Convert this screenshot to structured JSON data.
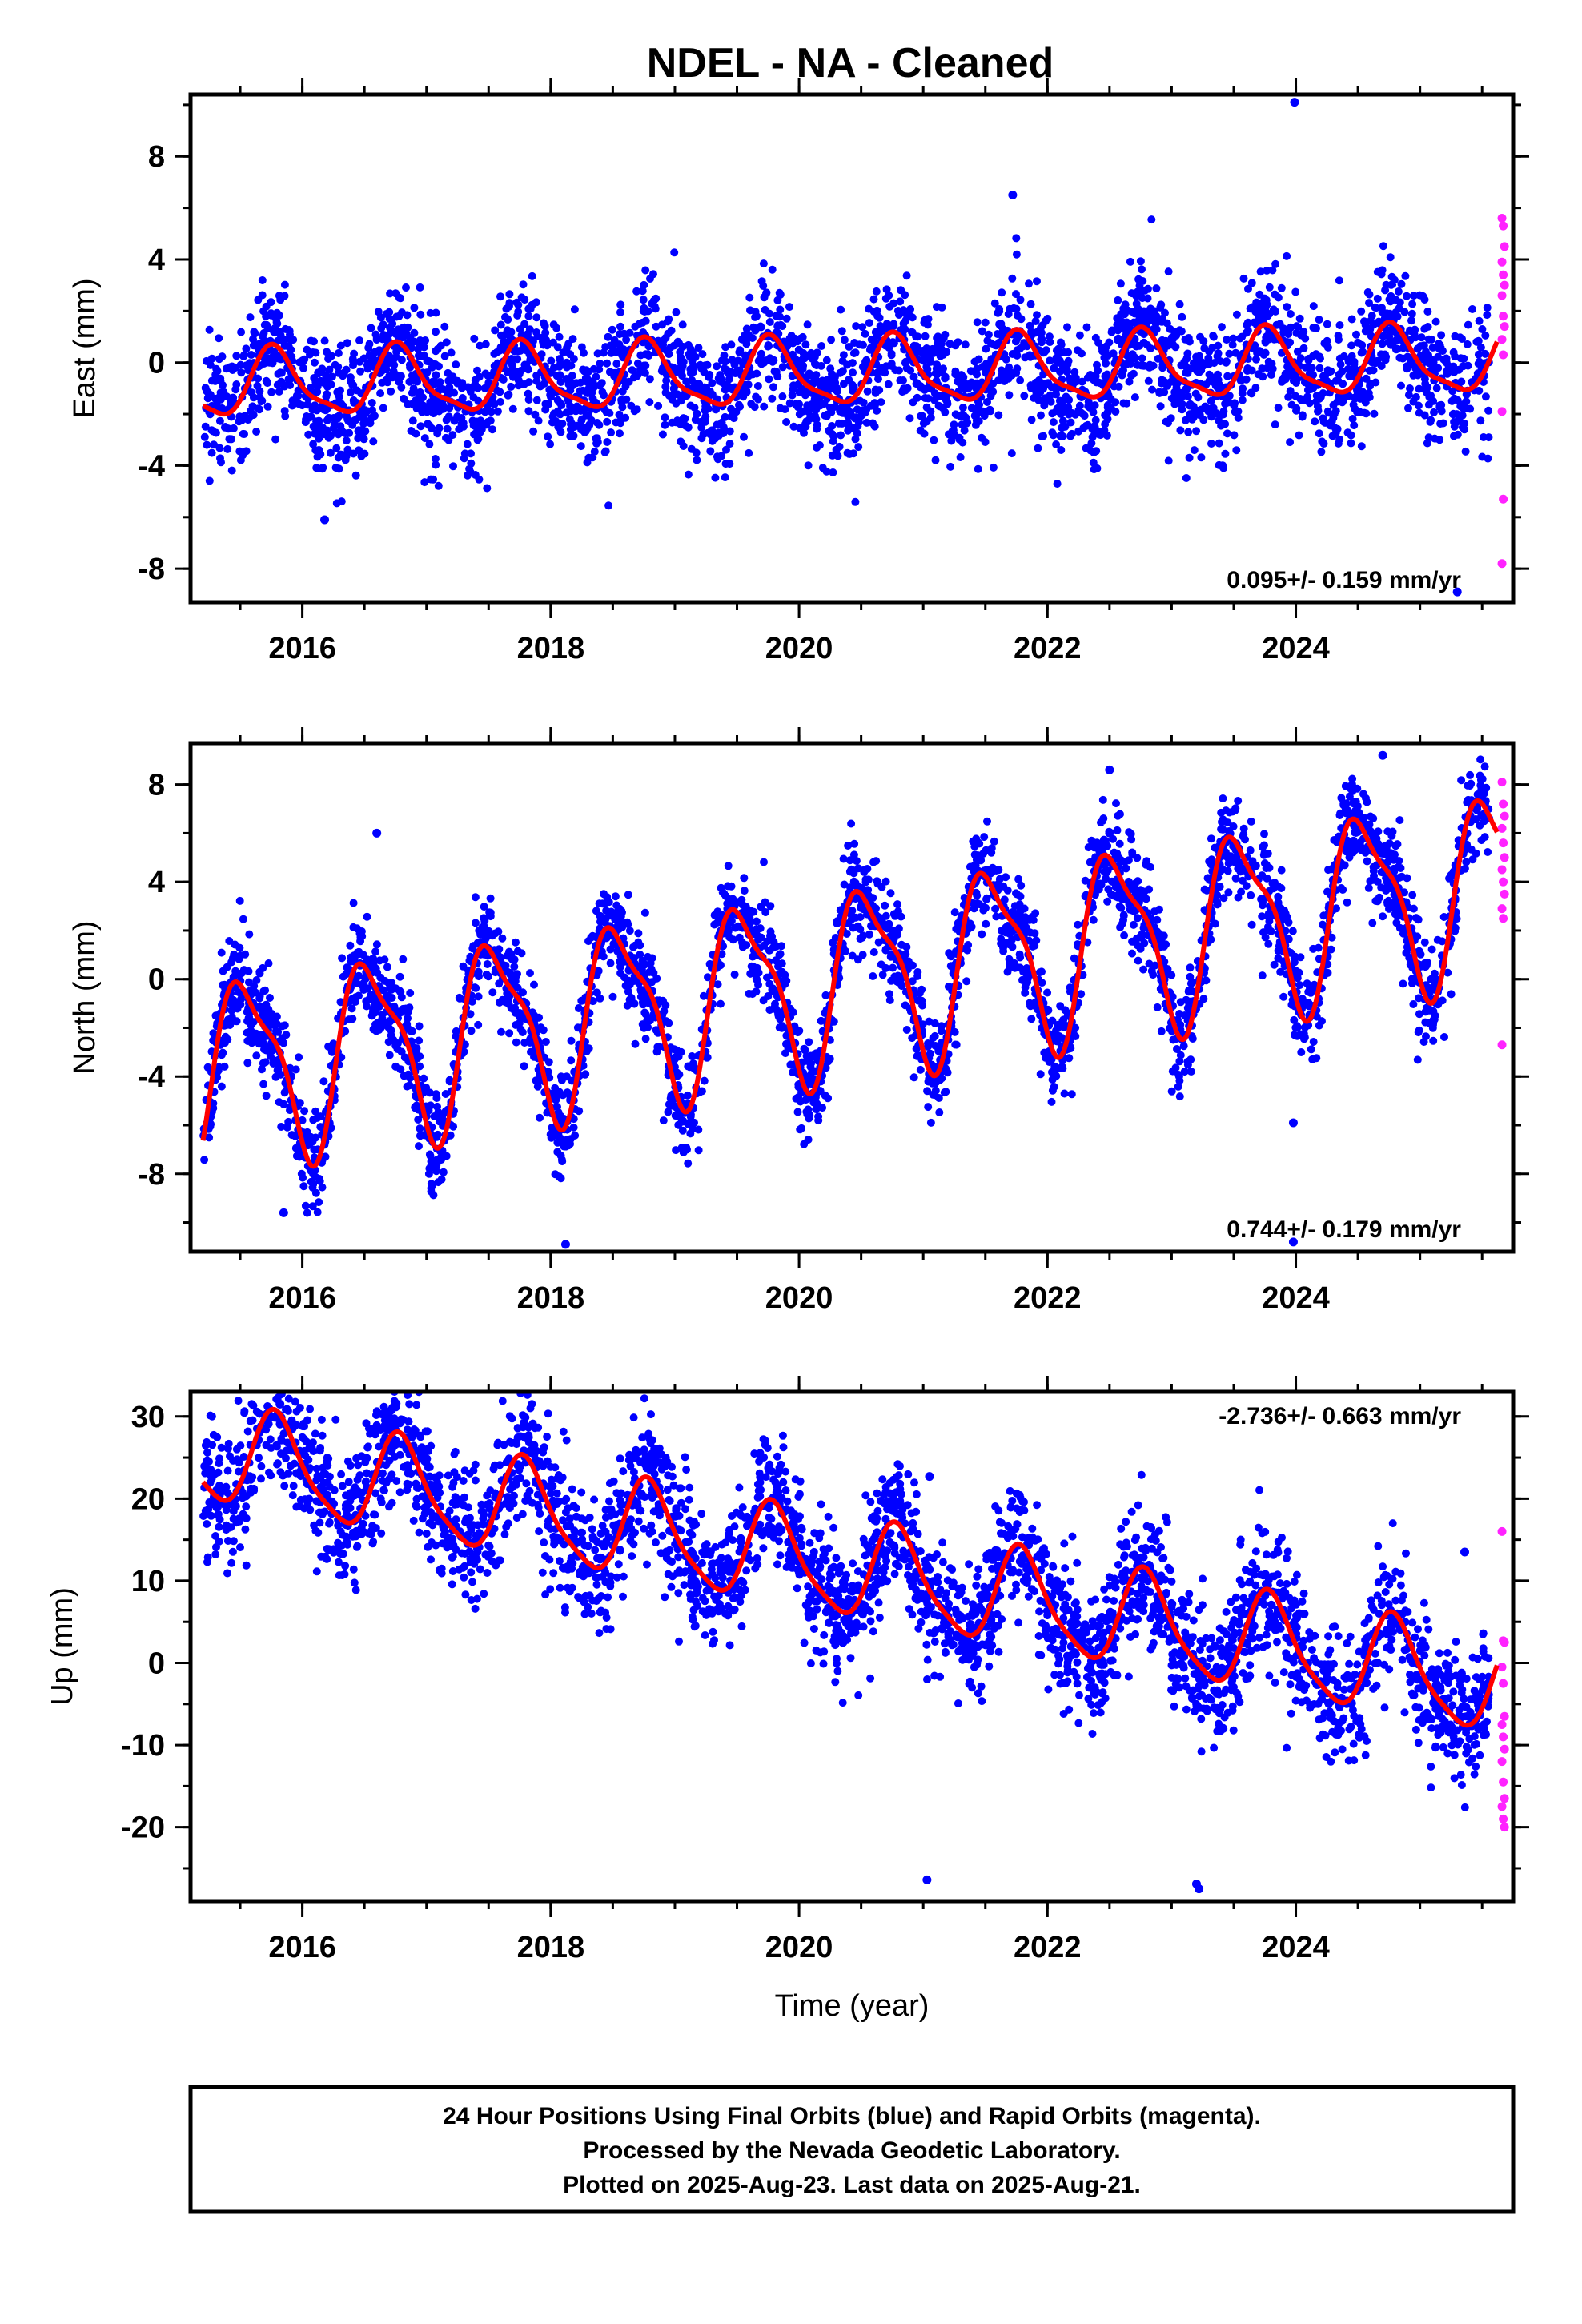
{
  "title": "NDEL  - NA - Cleaned",
  "colors": {
    "final_orbits": "#0000ff",
    "rapid_orbits": "#ff22ff",
    "model_fit": "#ff0000",
    "frame": "#000000"
  },
  "chart_data": [
    {
      "type": "scatter",
      "component": "east",
      "ylabel": "East (mm)",
      "xlabel": "",
      "xlim": [
        2015.1,
        2025.75
      ],
      "ylim": [
        -9.3,
        10.4
      ],
      "xticks": [
        2016,
        2018,
        2020,
        2022,
        2024
      ],
      "xtick_labels": [
        "2016",
        "2018",
        "2020",
        "2022",
        "2024"
      ],
      "yticks": [
        -8,
        -4,
        0,
        4,
        8
      ],
      "ytick_labels": [
        "-8",
        "-4",
        "0",
        "4",
        "8"
      ],
      "rate_label": "0.095+/- 0.159 mm/yr",
      "rate_position": "bottom-right",
      "model": {
        "start": 2015.2,
        "end": 2025.62,
        "offset": -0.45,
        "trend": 0.095,
        "annual_amp": 1.25,
        "annual_peak": 2015.78,
        "semiannual_amp": 0.35,
        "semiannual_phase": 0.6
      },
      "scatter": {
        "count": 3300,
        "noise_sd": 1.25,
        "seed": 11
      },
      "outliers": [
        [
          2023.99,
          10.1
        ],
        [
          2021.72,
          6.5
        ],
        [
          2025.3,
          -8.9
        ],
        [
          2016.18,
          -6.1
        ]
      ],
      "rapid_points": [
        [
          2025.66,
          5.6
        ],
        [
          2025.67,
          5.3
        ],
        [
          2025.68,
          4.5
        ],
        [
          2025.66,
          3.9
        ],
        [
          2025.67,
          3.4
        ],
        [
          2025.68,
          3.0
        ],
        [
          2025.66,
          2.6
        ],
        [
          2025.67,
          1.8
        ],
        [
          2025.68,
          1.4
        ],
        [
          2025.66,
          0.9
        ],
        [
          2025.67,
          0.3
        ],
        [
          2025.66,
          -1.9
        ],
        [
          2025.67,
          -5.3
        ],
        [
          2025.66,
          -7.8
        ]
      ]
    },
    {
      "type": "scatter",
      "component": "north",
      "ylabel": "North (mm)",
      "xlabel": "",
      "xlim": [
        2015.1,
        2025.75
      ],
      "ylim": [
        -11.2,
        9.7
      ],
      "xticks": [
        2016,
        2018,
        2020,
        2022,
        2024
      ],
      "xtick_labels": [
        "2016",
        "2018",
        "2020",
        "2022",
        "2024"
      ],
      "yticks": [
        -8,
        -4,
        0,
        4,
        8
      ],
      "ytick_labels": [
        "-8",
        "-4",
        "0",
        "4",
        "8"
      ],
      "rate_label": "0.744+/- 0.179 mm/yr",
      "rate_position": "bottom-right",
      "model": {
        "start": 2015.2,
        "end": 2025.62,
        "offset": -0.3,
        "trend": 0.744,
        "annual_amp": 3.6,
        "annual_peak": 2015.55,
        "semiannual_amp": 1.1,
        "semiannual_phase": 2.2
      },
      "scatter": {
        "count": 3300,
        "noise_sd": 1.05,
        "seed": 23
      },
      "outliers": [
        [
          2018.12,
          -10.9
        ],
        [
          2023.98,
          -10.8
        ],
        [
          2015.85,
          -9.6
        ],
        [
          2023.98,
          -5.9
        ],
        [
          2024.7,
          9.2
        ],
        [
          2016.6,
          6.0
        ],
        [
          2022.5,
          8.6
        ]
      ],
      "rapid_points": [
        [
          2025.66,
          8.1
        ],
        [
          2025.67,
          7.2
        ],
        [
          2025.68,
          6.7
        ],
        [
          2025.66,
          6.2
        ],
        [
          2025.67,
          5.6
        ],
        [
          2025.68,
          5.0
        ],
        [
          2025.66,
          4.5
        ],
        [
          2025.67,
          4.0
        ],
        [
          2025.68,
          3.5
        ],
        [
          2025.66,
          2.9
        ],
        [
          2025.67,
          2.5
        ],
        [
          2025.66,
          -2.7
        ]
      ]
    },
    {
      "type": "scatter",
      "component": "up",
      "ylabel": "Up (mm)",
      "xlabel": "Time (year)",
      "xlim": [
        2015.1,
        2025.75
      ],
      "ylim": [
        -29,
        33
      ],
      "xticks": [
        2016,
        2018,
        2020,
        2022,
        2024
      ],
      "xtick_labels": [
        "2016",
        "2018",
        "2020",
        "2022",
        "2024"
      ],
      "yticks": [
        -20,
        -10,
        0,
        10,
        20,
        30
      ],
      "ytick_labels": [
        "-20",
        "-10",
        "0",
        "10",
        "20",
        "30"
      ],
      "rate_label": "-2.736+/- 0.663 mm/yr",
      "rate_position": "top-right",
      "model": {
        "start": 2015.2,
        "end": 2025.62,
        "offset": 12.5,
        "trend": -2.736,
        "annual_amp": 5.8,
        "annual_peak": 2015.8,
        "semiannual_amp": 1.2,
        "semiannual_phase": 0.8
      },
      "scatter": {
        "count": 3300,
        "noise_sd": 4.1,
        "seed": 37
      },
      "outliers": [
        [
          2015.82,
          31.5
        ],
        [
          2021.05,
          22.7
        ],
        [
          2020.75,
          19.0
        ],
        [
          2025.36,
          13.5
        ],
        [
          2021.03,
          -26.4
        ],
        [
          2023.22,
          -27.5
        ],
        [
          2023.2,
          -26.9
        ]
      ],
      "rapid_points": [
        [
          2025.66,
          16.0
        ],
        [
          2025.67,
          2.7
        ],
        [
          2025.68,
          2.5
        ],
        [
          2025.66,
          -0.5
        ],
        [
          2025.67,
          -2.5
        ],
        [
          2025.68,
          -6.5
        ],
        [
          2025.66,
          -7.5
        ],
        [
          2025.67,
          -9.0
        ],
        [
          2025.68,
          -10.5
        ],
        [
          2025.66,
          -12.0
        ],
        [
          2025.67,
          -14.5
        ],
        [
          2025.68,
          -16.5
        ],
        [
          2025.66,
          -17.5
        ],
        [
          2025.67,
          -19.0
        ],
        [
          2025.68,
          -20.0
        ]
      ]
    }
  ],
  "footer": {
    "line1": "24 Hour Positions Using Final Orbits (blue) and Rapid Orbits (magenta).",
    "line2": "Processed by the Nevada Geodetic Laboratory.",
    "line3": "Plotted on 2025-Aug-23. Last data on 2025-Aug-21."
  }
}
